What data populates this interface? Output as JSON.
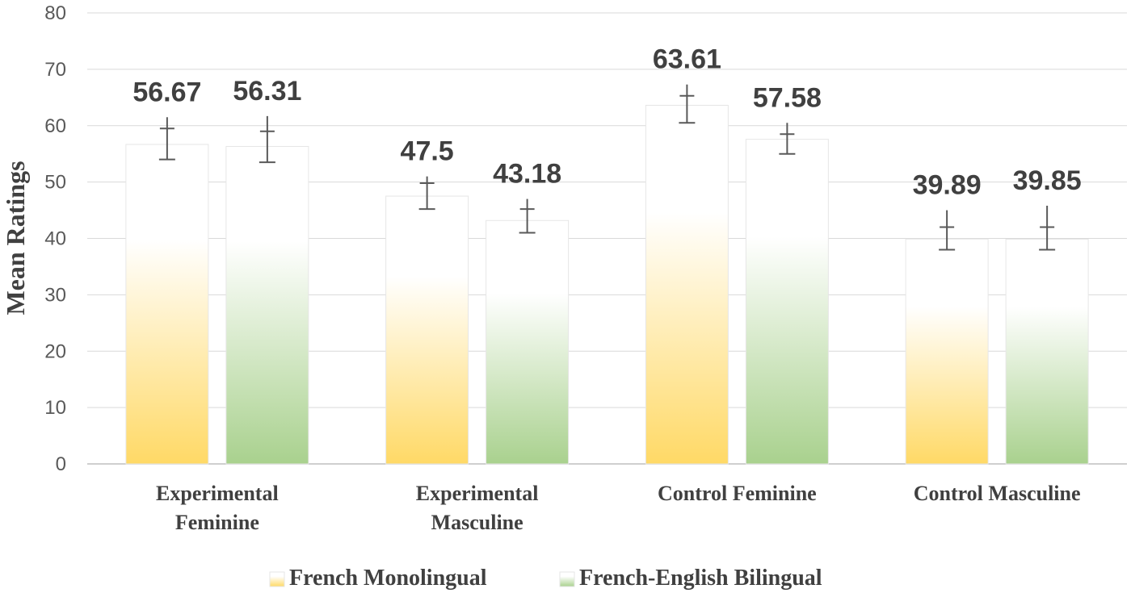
{
  "chart_data": {
    "type": "bar",
    "ylabel": "Mean Ratings",
    "ylim": [
      0,
      80
    ],
    "yticks": [
      0,
      10,
      20,
      30,
      40,
      50,
      60,
      70,
      80
    ],
    "grid": true,
    "legend_position": "bottom",
    "categories": [
      [
        "Experimental",
        "Feminine"
      ],
      [
        "Experimental",
        "Masculine"
      ],
      [
        "Control Feminine"
      ],
      [
        "Control Masculine"
      ]
    ],
    "series": [
      {
        "name": "French Monolingual",
        "color": "#FFD966",
        "values": [
          56.67,
          47.5,
          63.61,
          39.89
        ],
        "error_low": [
          54.0,
          45.2,
          60.5,
          38.0
        ],
        "error_high": [
          61.5,
          51.0,
          67.3,
          45.0
        ],
        "error_mid": [
          59.5,
          49.8,
          65.3,
          42.0
        ]
      },
      {
        "name": "French-English Bilingual",
        "color": "#A9D18E",
        "values": [
          56.31,
          43.18,
          57.58,
          39.85
        ],
        "error_low": [
          53.5,
          41.0,
          55.0,
          38.0
        ],
        "error_high": [
          61.7,
          47.0,
          60.5,
          45.8
        ],
        "error_mid": [
          59.0,
          45.2,
          58.5,
          42.0
        ]
      }
    ]
  }
}
